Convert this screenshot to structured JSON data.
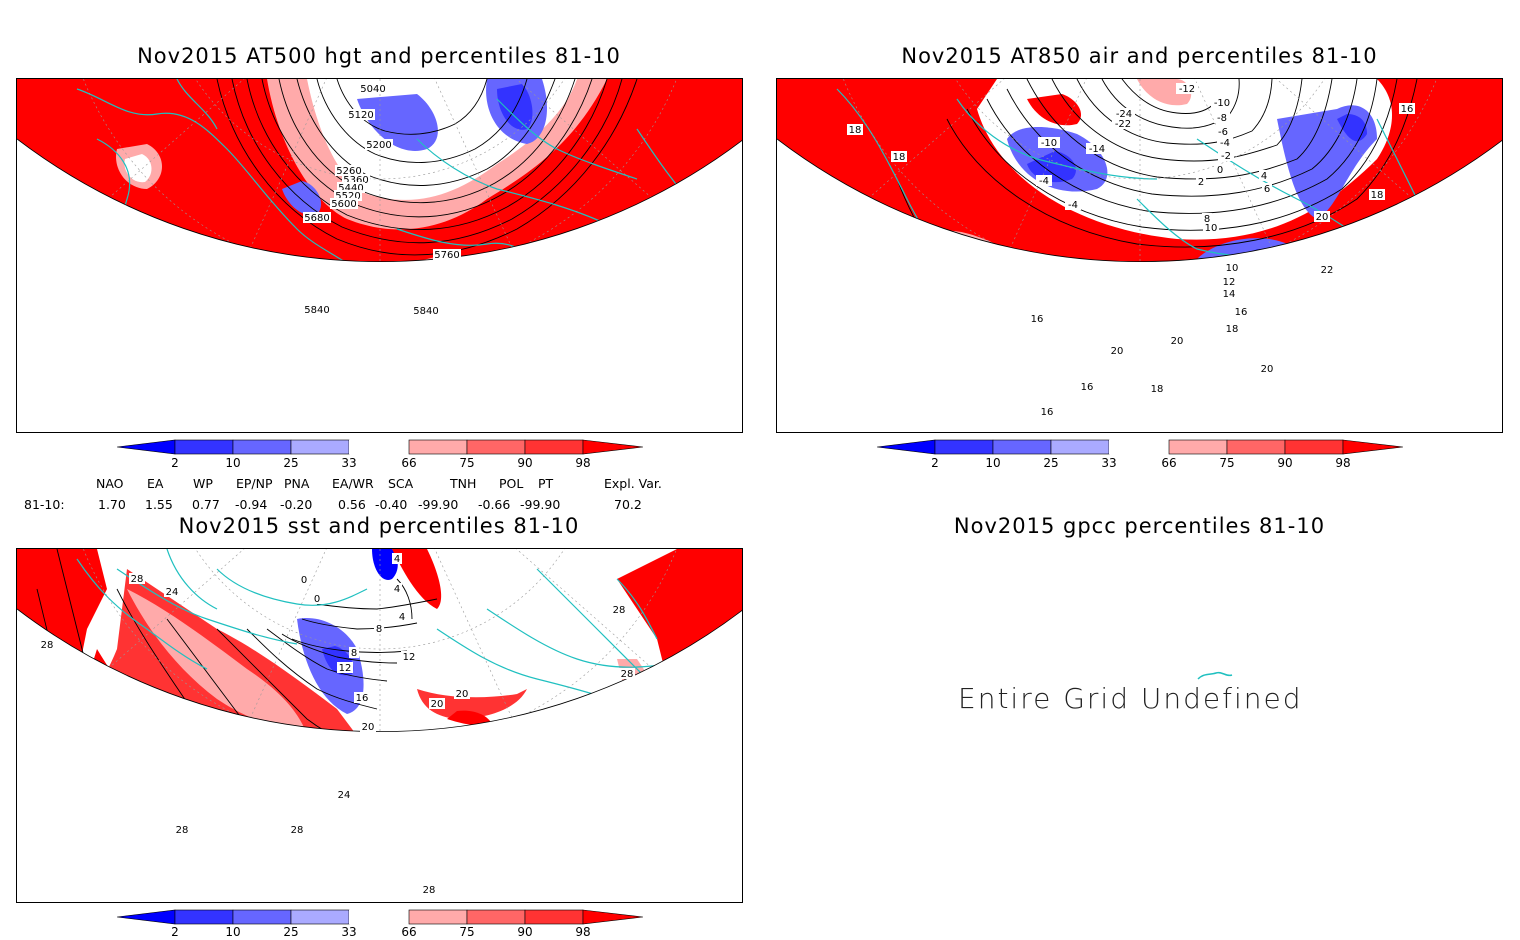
{
  "panels": [
    {
      "title": "Nov2015 AT500 hgt and percentiles 81-10",
      "contour_labels": [
        "5040",
        "5120",
        "5200",
        "5260",
        "5360",
        "5440",
        "5520",
        "5600",
        "5680",
        "5760",
        "5840",
        "5840"
      ]
    },
    {
      "title": "Nov2015 AT850 air and percentiles 81-10",
      "contour_labels": [
        "-12",
        "-10",
        "-8",
        "-6",
        "-4",
        "-2",
        "0",
        "2",
        "4",
        "6",
        "8",
        "10",
        "-24",
        "-22",
        "-14",
        "-10",
        "-4",
        "-4",
        "18",
        "18",
        "16",
        "18",
        "20",
        "22",
        "10",
        "12",
        "14",
        "16",
        "18",
        "20",
        "20",
        "20",
        "16",
        "16",
        "18",
        "16"
      ]
    },
    {
      "title": "Nov2015 sst and percentiles 81-10",
      "contour_labels": [
        "28",
        "24",
        "28",
        "0",
        "0",
        "4",
        "4",
        "8",
        "12",
        "16",
        "20",
        "24",
        "28",
        "28",
        "28",
        "28",
        "28",
        "20",
        "20",
        "12",
        "8",
        "4"
      ]
    },
    {
      "title": "Nov2015 gpcc percentiles 81-10",
      "message": "Entire Grid Undefined"
    }
  ],
  "colorbar": {
    "labels": [
      "2",
      "10",
      "25",
      "33",
      "66",
      "75",
      "90",
      "98"
    ],
    "colors": [
      "#0000ff",
      "#3333ff",
      "#6666ff",
      "#aaaaff",
      "#ffffff",
      "#ffaaaa",
      "#ff6666",
      "#ff3333",
      "#ff0000"
    ]
  },
  "indices": {
    "headers": [
      "NAO",
      "EA",
      "WP",
      "EP/NP",
      "PNA",
      "EA/WR",
      "SCA",
      "TNH",
      "POL",
      "PT",
      "Expl. Var."
    ],
    "row_label": "81-10:",
    "values": [
      "1.70",
      "1.55",
      "0.77",
      "-0.94",
      "-0.20",
      "0.56",
      "-0.40",
      "-99.90",
      "-0.66",
      "-99.90",
      "70.2"
    ]
  }
}
